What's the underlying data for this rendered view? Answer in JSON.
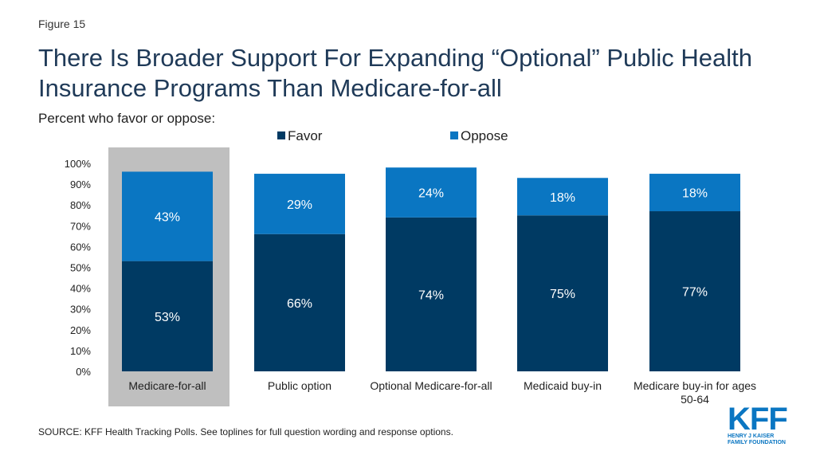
{
  "header": {
    "figure_label": "Figure 15",
    "title": "There Is Broader Support For Expanding “Optional” Public Health Insurance Programs Than Medicare-for-all",
    "subtitle": "Percent who favor or oppose:"
  },
  "footer": {
    "source": "SOURCE: KFF Health Tracking Polls. See toplines for full question wording and response options."
  },
  "logo": {
    "mark": "KFF",
    "line1": "HENRY J KAISER",
    "line2": "FAMILY FOUNDATION"
  },
  "colors": {
    "favor": "#003a63",
    "oppose": "#0a76c2",
    "highlight": "#bfbfbf",
    "bar_text": "#ffffff",
    "axis_text": "#1f1f1f"
  },
  "chart_data": {
    "type": "bar",
    "stacked": true,
    "title": "Percent who favor or oppose:",
    "categories": [
      "Medicare-for-all",
      "Public option",
      "Optional Medicare-for-all",
      "Medicaid buy-in",
      "Medicare buy-in for ages 50-64"
    ],
    "category_lines": [
      [
        "Medicare-for-all"
      ],
      [
        "Public option"
      ],
      [
        "Optional Medicare-for-all"
      ],
      [
        "Medicaid buy-in"
      ],
      [
        "Medicare buy-in for ages",
        "50-64"
      ]
    ],
    "series": [
      {
        "name": "Favor",
        "values": [
          53,
          66,
          74,
          75,
          77
        ],
        "labels": [
          "53%",
          "66%",
          "74%",
          "75%",
          "77%"
        ]
      },
      {
        "name": "Oppose",
        "values": [
          43,
          29,
          24,
          18,
          18
        ],
        "labels": [
          "43%",
          "29%",
          "24%",
          "18%",
          "18%"
        ]
      }
    ],
    "yticks": [
      "0%",
      "10%",
      "20%",
      "30%",
      "40%",
      "50%",
      "60%",
      "70%",
      "80%",
      "90%",
      "100%"
    ],
    "ylim": [
      0,
      100
    ],
    "highlighted_category": "Medicare-for-all",
    "legend_position": "top",
    "grid": false
  }
}
